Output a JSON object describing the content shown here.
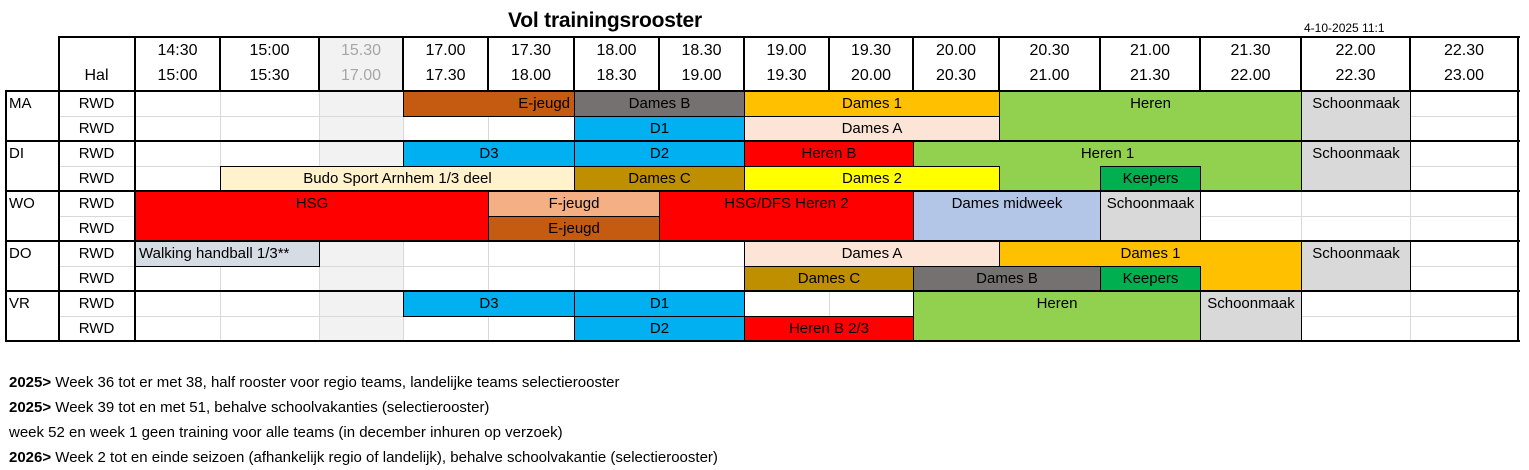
{
  "title": "Vol trainingsrooster",
  "timestamp": "4-10-2025 11:1",
  "header": {
    "hal_label": "Hal",
    "timeslots": [
      {
        "start": "14:30",
        "end": "15:00",
        "greyed": false
      },
      {
        "start": "15:00",
        "end": "15:30",
        "greyed": false
      },
      {
        "start": "15.30",
        "end": "17.00",
        "greyed": true
      },
      {
        "start": "17.00",
        "end": "17.30",
        "greyed": false
      },
      {
        "start": "17.30",
        "end": "18.00",
        "greyed": false
      },
      {
        "start": "18.00",
        "end": "18.30",
        "greyed": false
      },
      {
        "start": "18.30",
        "end": "19.00",
        "greyed": false
      },
      {
        "start": "19.00",
        "end": "19.30",
        "greyed": false
      },
      {
        "start": "19.30",
        "end": "20.00",
        "greyed": false
      },
      {
        "start": "20.00",
        "end": "20.30",
        "greyed": false
      },
      {
        "start": "20.30",
        "end": "21.00",
        "greyed": false
      },
      {
        "start": "21.00",
        "end": "21.30",
        "greyed": false
      },
      {
        "start": "21.30",
        "end": "22.00",
        "greyed": false
      },
      {
        "start": "22.00",
        "end": "22.30",
        "greyed": false
      },
      {
        "start": "22.30",
        "end": "23.00",
        "greyed": false
      }
    ]
  },
  "days": [
    {
      "day": "MA",
      "halls": [
        "RWD",
        "RWD"
      ]
    },
    {
      "day": "DI",
      "halls": [
        "RWD",
        "RWD"
      ]
    },
    {
      "day": "WO",
      "halls": [
        "RWD",
        "RWD"
      ]
    },
    {
      "day": "DO",
      "halls": [
        "RWD",
        "RWD"
      ]
    },
    {
      "day": "VR",
      "halls": [
        "RWD",
        "RWD"
      ]
    }
  ],
  "colors": {
    "ejeugd": "#c55a11",
    "dames_b": "#767171",
    "dames_1": "#ffc000",
    "heren": "#92d050",
    "schoonmaak": "#d9d9d9",
    "d_teams": "#00b0f0",
    "dames_a": "#fce4d6",
    "heren_b": "#ff0000",
    "budo": "#fff2cc",
    "dames_c": "#bf8f00",
    "dames_2": "#ffff00",
    "keepers": "#00b050",
    "hsg": "#ff0000",
    "fjeugd": "#f4b084",
    "dames_midweek": "#b4c6e7",
    "walking": "#d6dce4",
    "grey_column": "#f2f2f2"
  },
  "blocks": [
    {
      "label": "E-jeugd",
      "day": "MA",
      "row": 0,
      "from": 3,
      "to": 5,
      "color": "#c55a11",
      "align": "right"
    },
    {
      "label": "Dames B",
      "day": "MA",
      "row": 0,
      "from": 5,
      "to": 7,
      "color": "#767171"
    },
    {
      "label": "Dames 1",
      "day": "MA",
      "row": 0,
      "from": 7,
      "to": 10,
      "color": "#ffc000"
    },
    {
      "label": "Heren",
      "day": "MA",
      "row": 0,
      "span_rows": 2,
      "from": 10,
      "to": 13,
      "color": "#92d050"
    },
    {
      "label": "Schoonmaak",
      "day": "MA",
      "row": 0,
      "span_rows": 2,
      "from": 13,
      "to": 14,
      "color": "#d9d9d9"
    },
    {
      "label": "D1",
      "day": "MA",
      "row": 1,
      "from": 5,
      "to": 7,
      "color": "#00b0f0"
    },
    {
      "label": "Dames A",
      "day": "MA",
      "row": 1,
      "from": 7,
      "to": 10,
      "color": "#fce4d6"
    },
    {
      "label": "D3",
      "day": "DI",
      "row": 0,
      "from": 3,
      "to": 5,
      "color": "#00b0f0"
    },
    {
      "label": "D2",
      "day": "DI",
      "row": 0,
      "from": 5,
      "to": 7,
      "color": "#00b0f0"
    },
    {
      "label": "Heren B",
      "day": "DI",
      "row": 0,
      "from": 7,
      "to": 9,
      "color": "#ff0000"
    },
    {
      "label": "Heren 1",
      "day": "DI",
      "row": 0,
      "span_rows": 2,
      "from": 9,
      "to": 13,
      "color": "#92d050"
    },
    {
      "label": "Schoonmaak",
      "day": "DI",
      "row": 0,
      "span_rows": 2,
      "from": 13,
      "to": 14,
      "color": "#d9d9d9"
    },
    {
      "label": "Budo Sport Arnhem 1/3 deel",
      "day": "DI",
      "row": 1,
      "from": 1,
      "to": 5,
      "color": "#fff2cc"
    },
    {
      "label": "Dames C",
      "day": "DI",
      "row": 1,
      "from": 5,
      "to": 7,
      "color": "#bf8f00"
    },
    {
      "label": "Dames 2",
      "day": "DI",
      "row": 1,
      "from": 7,
      "to": 10,
      "color": "#ffff00"
    },
    {
      "label": "Keepers",
      "day": "DI",
      "row": 1,
      "from": 11,
      "to": 12,
      "color": "#00b050"
    },
    {
      "label": "HSG",
      "day": "WO",
      "row": 0,
      "span_rows": 2,
      "from": 0,
      "to": 4,
      "color": "#ff0000"
    },
    {
      "label": "F-jeugd",
      "day": "WO",
      "row": 0,
      "from": 4,
      "to": 6,
      "color": "#f4b084"
    },
    {
      "label": "E-jeugd",
      "day": "WO",
      "row": 1,
      "from": 4,
      "to": 6,
      "color": "#c55a11"
    },
    {
      "label": "HSG/DFS Heren 2",
      "day": "WO",
      "row": 0,
      "span_rows": 2,
      "from": 6,
      "to": 9,
      "color": "#ff0000"
    },
    {
      "label": "Dames midweek",
      "day": "WO",
      "row": 0,
      "span_rows": 2,
      "from": 9,
      "to": 11,
      "color": "#b4c6e7"
    },
    {
      "label": "Schoonmaak",
      "day": "WO",
      "row": 0,
      "span_rows": 2,
      "from": 11,
      "to": 12,
      "color": "#d9d9d9"
    },
    {
      "label": "Walking handball 1/3**",
      "day": "DO",
      "row": 0,
      "from": 0,
      "to": 2,
      "color": "#d6dce4",
      "align": "left"
    },
    {
      "label": "Dames A",
      "day": "DO",
      "row": 0,
      "from": 7,
      "to": 10,
      "color": "#fce4d6"
    },
    {
      "label": "Dames 1",
      "day": "DO",
      "row": 0,
      "span_rows": 2,
      "from": 10,
      "to": 13,
      "color": "#ffc000"
    },
    {
      "label": "Schoonmaak",
      "day": "DO",
      "row": 0,
      "span_rows": 2,
      "from": 13,
      "to": 14,
      "color": "#d9d9d9"
    },
    {
      "label": "Dames C",
      "day": "DO",
      "row": 1,
      "from": 7,
      "to": 9,
      "color": "#bf8f00"
    },
    {
      "label": "Dames B",
      "day": "DO",
      "row": 1,
      "from": 9,
      "to": 11,
      "color": "#767171"
    },
    {
      "label": "Keepers",
      "day": "DO",
      "row": 1,
      "from": 11,
      "to": 12,
      "color": "#00b050"
    },
    {
      "label": "D3",
      "day": "VR",
      "row": 0,
      "from": 3,
      "to": 5,
      "color": "#00b0f0"
    },
    {
      "label": "D1",
      "day": "VR",
      "row": 0,
      "from": 5,
      "to": 7,
      "color": "#00b0f0"
    },
    {
      "label": "Heren",
      "day": "VR",
      "row": 0,
      "span_rows": 2,
      "from": 9,
      "to": 12,
      "color": "#92d050"
    },
    {
      "label": "Schoonmaak",
      "day": "VR",
      "row": 0,
      "span_rows": 2,
      "from": 12,
      "to": 13,
      "color": "#d9d9d9"
    },
    {
      "label": "D2",
      "day": "VR",
      "row": 1,
      "from": 5,
      "to": 7,
      "color": "#00b0f0"
    },
    {
      "label": "Heren B 2/3",
      "day": "VR",
      "row": 1,
      "from": 7,
      "to": 9,
      "color": "#ff0000"
    }
  ],
  "notes": [
    {
      "bold": "2025>",
      "text": " Week 36 tot er met 38, half rooster voor regio teams, landelijke teams selectierooster"
    },
    {
      "bold": "2025>",
      "text": " Week 39 tot en met 51, behalve schoolvakanties (selectierooster)"
    },
    {
      "bold": "",
      "text": "week 52 en week 1 geen training voor alle teams (in december inhuren op verzoek)"
    },
    {
      "bold": "2026>",
      "text": " Week 2 tot en einde seizoen (afhankelijk regio of landelijk), behalve schoolvakantie (selectierooster)"
    }
  ]
}
